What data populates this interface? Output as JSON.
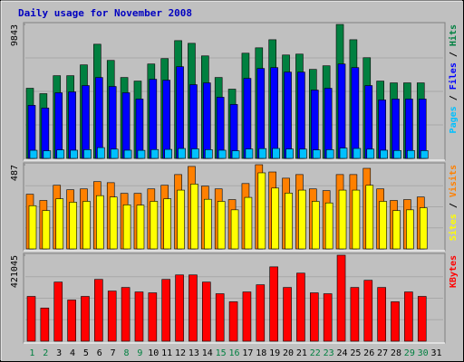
{
  "title": "Daily usage for November 2008",
  "legend_separator": " / ",
  "chart_data": [
    {
      "type": "bar",
      "ylim": [
        0,
        9843
      ],
      "yticks": [
        9843
      ],
      "series": [
        {
          "name": "Hits",
          "color": "#008040",
          "values": [
            5153,
            4756,
            6077,
            6077,
            6870,
            8389,
            7200,
            5945,
            5681,
            6936,
            7333,
            8654,
            8456,
            7531,
            5945,
            5087,
            7729,
            8125,
            8720,
            7597,
            7663,
            6540,
            6804,
            9843,
            8720,
            7398,
            5681,
            5549,
            5549,
            5549,
            null
          ]
        },
        {
          "name": "Files",
          "color": "#0000ff",
          "values": [
            3898,
            3699,
            4822,
            4888,
            5351,
            5945,
            5285,
            4822,
            4360,
            5813,
            5747,
            6738,
            5417,
            5549,
            4492,
            3963,
            5879,
            6606,
            6672,
            6342,
            6342,
            5020,
            5152,
            6936,
            6672,
            5351,
            4294,
            4360,
            4360,
            4360,
            null
          ]
        },
        {
          "name": "Pages",
          "color": "#00c0ff",
          "values": [
            595,
            560,
            620,
            600,
            640,
            793,
            680,
            600,
            590,
            650,
            660,
            727,
            700,
            640,
            600,
            560,
            690,
            720,
            730,
            690,
            680,
            620,
            640,
            760,
            730,
            680,
            600,
            580,
            580,
            570,
            null
          ]
        }
      ]
    },
    {
      "type": "bar",
      "ylim": [
        0,
        487
      ],
      "yticks": [
        487
      ],
      "series": [
        {
          "name": "Visits",
          "color": "#ff8000",
          "values": [
            316,
            280,
            368,
            342,
            347,
            389,
            383,
            321,
            321,
            347,
            368,
            430,
            477,
            363,
            347,
            285,
            378,
            487,
            445,
            409,
            430,
            347,
            337,
            430,
            430,
            466,
            347,
            280,
            285,
            300,
            null
          ]
        },
        {
          "name": "Sites",
          "color": "#ffff00",
          "values": [
            250,
            222,
            290,
            270,
            275,
            308,
            300,
            255,
            253,
            275,
            290,
            340,
            375,
            287,
            275,
            226,
            298,
            440,
            352,
            323,
            340,
            275,
            266,
            340,
            340,
            368,
            275,
            222,
            226,
            238,
            null
          ]
        }
      ]
    },
    {
      "type": "bar",
      "ylim": [
        0,
        421045
      ],
      "yticks": [
        421045
      ],
      "categories": [
        "1",
        "2",
        "3",
        "4",
        "5",
        "6",
        "7",
        "8",
        "9",
        "10",
        "11",
        "12",
        "13",
        "14",
        "15",
        "16",
        "17",
        "18",
        "19",
        "20",
        "21",
        "22",
        "23",
        "24",
        "25",
        "26",
        "27",
        "28",
        "29",
        "30",
        "31"
      ],
      "category_colors": [
        "#008040",
        "#008040",
        "#000000",
        "#000000",
        "#000000",
        "#000000",
        "#000000",
        "#008040",
        "#008040",
        "#000000",
        "#000000",
        "#000000",
        "#000000",
        "#000000",
        "#008040",
        "#008040",
        "#000000",
        "#000000",
        "#000000",
        "#000000",
        "#000000",
        "#008040",
        "#008040",
        "#000000",
        "#000000",
        "#000000",
        "#000000",
        "#000000",
        "#008040",
        "#008040",
        "#000000"
      ],
      "series": [
        {
          "name": "KBytes",
          "color": "#ff0000",
          "values": [
            219300,
            162282,
            289476,
            201756,
            219300,
            302634,
            245616,
            263160,
            241230,
            236844,
            302634,
            324564,
            324564,
            289476,
            232458,
            192984,
            241230,
            276318,
            364038,
            263160,
            333336,
            236844,
            232458,
            421045,
            263160,
            298248,
            263160,
            192984,
            241230,
            219300,
            null
          ]
        }
      ]
    }
  ]
}
